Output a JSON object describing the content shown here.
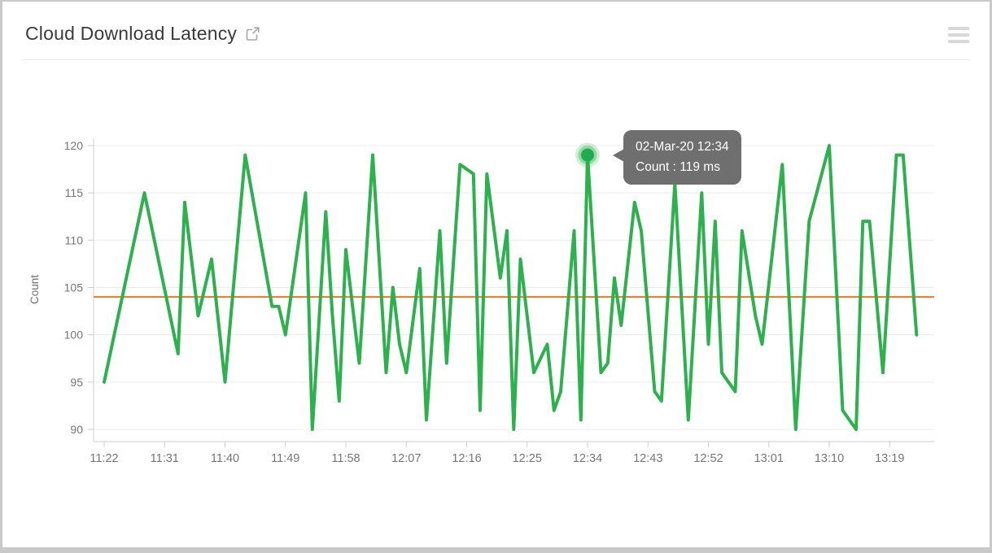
{
  "header": {
    "title": "Cloud Download Latency",
    "external_link_icon": "open-in-new-icon",
    "menu_icon": "hamburger-menu-icon"
  },
  "chart_data": {
    "type": "line",
    "title": "Cloud Download Latency",
    "xlabel": "",
    "ylabel": "Count",
    "unit": "ms",
    "ylim": [
      90,
      120
    ],
    "grid": true,
    "legend_position": "none",
    "y_ticks": [
      120,
      115,
      110,
      105,
      100,
      95,
      90
    ],
    "x_ticks": [
      "11:22",
      "11:31",
      "11:40",
      "11:49",
      "11:58",
      "12:07",
      "12:16",
      "12:25",
      "12:34",
      "12:43",
      "12:52",
      "13:01",
      "13:10",
      "13:19"
    ],
    "series_name": "Count",
    "series_color": "#2bb24c",
    "threshold": {
      "value": 104,
      "color": "#e8771e"
    },
    "points": [
      [
        "11:22",
        95
      ],
      [
        "11:28",
        115
      ],
      [
        "11:33",
        98
      ],
      [
        "11:34",
        114
      ],
      [
        "11:36",
        102
      ],
      [
        "11:38",
        108
      ],
      [
        "11:40",
        95
      ],
      [
        "11:43",
        119
      ],
      [
        "11:47",
        103
      ],
      [
        "11:48",
        103
      ],
      [
        "11:49",
        100
      ],
      [
        "11:52",
        115
      ],
      [
        "11:53",
        90
      ],
      [
        "11:55",
        113
      ],
      [
        "11:56",
        102
      ],
      [
        "11:57",
        93
      ],
      [
        "11:58",
        109
      ],
      [
        "12:00",
        97
      ],
      [
        "12:02",
        119
      ],
      [
        "12:04",
        96
      ],
      [
        "12:05",
        105
      ],
      [
        "12:06",
        99
      ],
      [
        "12:07",
        96
      ],
      [
        "12:09",
        107
      ],
      [
        "12:10",
        91
      ],
      [
        "12:12",
        111
      ],
      [
        "12:13",
        97
      ],
      [
        "12:15",
        118
      ],
      [
        "12:17",
        117
      ],
      [
        "12:18",
        92
      ],
      [
        "12:19",
        117
      ],
      [
        "12:21",
        106
      ],
      [
        "12:22",
        111
      ],
      [
        "12:23",
        90
      ],
      [
        "12:24",
        108
      ],
      [
        "12:26",
        96
      ],
      [
        "12:28",
        99
      ],
      [
        "12:29",
        92
      ],
      [
        "12:30",
        94
      ],
      [
        "12:32",
        111
      ],
      [
        "12:33",
        91
      ],
      [
        "12:34",
        119
      ],
      [
        "12:36",
        96
      ],
      [
        "12:37",
        97
      ],
      [
        "12:38",
        106
      ],
      [
        "12:39",
        101
      ],
      [
        "12:41",
        114
      ],
      [
        "12:42",
        111
      ],
      [
        "12:44",
        94
      ],
      [
        "12:45",
        93
      ],
      [
        "12:47",
        116
      ],
      [
        "12:49",
        91
      ],
      [
        "12:51",
        115
      ],
      [
        "12:52",
        99
      ],
      [
        "12:53",
        112
      ],
      [
        "12:54",
        96
      ],
      [
        "12:56",
        94
      ],
      [
        "12:57",
        111
      ],
      [
        "12:59",
        102
      ],
      [
        "13:00",
        99
      ],
      [
        "13:03",
        118
      ],
      [
        "13:05",
        90
      ],
      [
        "13:07",
        112
      ],
      [
        "13:10",
        120
      ],
      [
        "13:12",
        92
      ],
      [
        "13:14",
        90
      ],
      [
        "13:15",
        112
      ],
      [
        "13:16",
        112
      ],
      [
        "13:18",
        96
      ],
      [
        "13:20",
        119
      ],
      [
        "13:21",
        119
      ],
      [
        "13:23",
        100
      ]
    ],
    "highlight": {
      "time": "12:34",
      "value": 119,
      "tooltip_title": "02-Mar-20 12:34",
      "tooltip_value": "Count : 119 ms"
    }
  }
}
